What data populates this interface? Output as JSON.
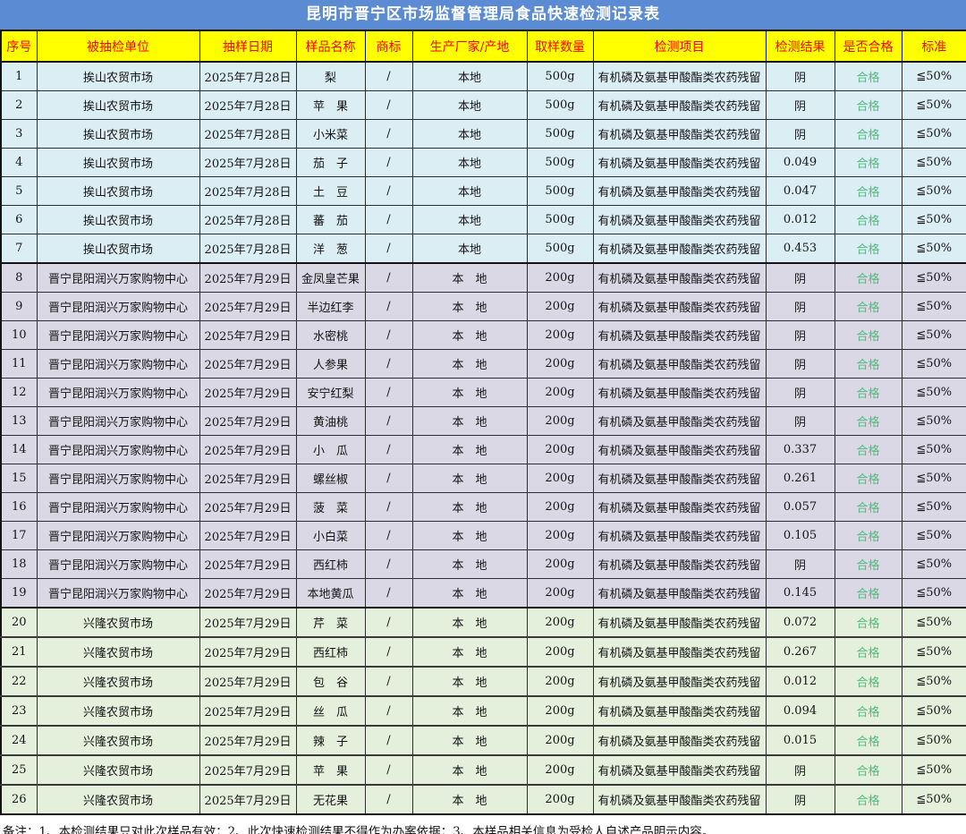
{
  "title": "昆明市晋宁区市场监督管理局食品快速检测记录表",
  "columns": [
    {
      "key": "seq",
      "label": "序号"
    },
    {
      "key": "unit",
      "label": "被抽检单位"
    },
    {
      "key": "date",
      "label": "抽样日期"
    },
    {
      "key": "sample",
      "label": "样品名称"
    },
    {
      "key": "brand",
      "label": "商标"
    },
    {
      "key": "producer",
      "label": "生产厂家/产地"
    },
    {
      "key": "qty",
      "label": "取样数量"
    },
    {
      "key": "item",
      "label": "检测项目"
    },
    {
      "key": "result",
      "label": "检测结果"
    },
    {
      "key": "qualified",
      "label": "是否合格"
    },
    {
      "key": "standard",
      "label": "标准"
    }
  ],
  "rows": [
    {
      "seq": "1",
      "unit": "挨山农贸市场",
      "date": "2025年7月28日",
      "sample": "梨",
      "brand": "/",
      "producer": "本地",
      "qty": "500g",
      "item": "有机磷及氨基甲酸酯类农药残留",
      "result": "阴",
      "qualified": "合格",
      "standard": "≦50%",
      "group": "blue"
    },
    {
      "seq": "2",
      "unit": "挨山农贸市场",
      "date": "2025年7月28日",
      "sample": "苹　果",
      "brand": "/",
      "producer": "本地",
      "qty": "500g",
      "item": "有机磷及氨基甲酸酯类农药残留",
      "result": "阴",
      "qualified": "合格",
      "standard": "≦50%",
      "group": "blue"
    },
    {
      "seq": "3",
      "unit": "挨山农贸市场",
      "date": "2025年7月28日",
      "sample": "小米菜",
      "brand": "/",
      "producer": "本地",
      "qty": "500g",
      "item": "有机磷及氨基甲酸酯类农药残留",
      "result": "阴",
      "qualified": "合格",
      "standard": "≦50%",
      "group": "blue"
    },
    {
      "seq": "4",
      "unit": "挨山农贸市场",
      "date": "2025年7月28日",
      "sample": "茄　子",
      "brand": "/",
      "producer": "本地",
      "qty": "500g",
      "item": "有机磷及氨基甲酸酯类农药残留",
      "result": "0.049",
      "qualified": "合格",
      "standard": "≦50%",
      "group": "blue"
    },
    {
      "seq": "5",
      "unit": "挨山农贸市场",
      "date": "2025年7月28日",
      "sample": "土　豆",
      "brand": "/",
      "producer": "本地",
      "qty": "500g",
      "item": "有机磷及氨基甲酸酯类农药残留",
      "result": "0.047",
      "qualified": "合格",
      "standard": "≦50%",
      "group": "blue"
    },
    {
      "seq": "6",
      "unit": "挨山农贸市场",
      "date": "2025年7月28日",
      "sample": "蕃　茄",
      "brand": "/",
      "producer": "本地",
      "qty": "500g",
      "item": "有机磷及氨基甲酸酯类农药残留",
      "result": "0.012",
      "qualified": "合格",
      "standard": "≦50%",
      "group": "blue"
    },
    {
      "seq": "7",
      "unit": "挨山农贸市场",
      "date": "2025年7月28日",
      "sample": "洋　葱",
      "brand": "/",
      "producer": "本地",
      "qty": "500g",
      "item": "有机磷及氨基甲酸酯类农药残留",
      "result": "0.453",
      "qualified": "合格",
      "standard": "≦50%",
      "group": "blue"
    },
    {
      "seq": "8",
      "unit": "晋宁昆阳润兴万家购物中心",
      "date": "2025年7月29日",
      "sample": "金凤皇芒果",
      "brand": "/",
      "producer": "本　地",
      "qty": "200g",
      "item": "有机磷及氨基甲酸酯类农药残留",
      "result": "阴",
      "qualified": "合格",
      "standard": "≦50%",
      "group": "purple"
    },
    {
      "seq": "9",
      "unit": "晋宁昆阳润兴万家购物中心",
      "date": "2025年7月29日",
      "sample": "半边红李",
      "brand": "/",
      "producer": "本　地",
      "qty": "200g",
      "item": "有机磷及氨基甲酸酯类农药残留",
      "result": "阴",
      "qualified": "合格",
      "standard": "≦50%",
      "group": "purple"
    },
    {
      "seq": "10",
      "unit": "晋宁昆阳润兴万家购物中心",
      "date": "2025年7月29日",
      "sample": "水密桃",
      "brand": "/",
      "producer": "本　地",
      "qty": "200g",
      "item": "有机磷及氨基甲酸酯类农药残留",
      "result": "阴",
      "qualified": "合格",
      "standard": "≦50%",
      "group": "purple"
    },
    {
      "seq": "11",
      "unit": "晋宁昆阳润兴万家购物中心",
      "date": "2025年7月29日",
      "sample": "人参果",
      "brand": "/",
      "producer": "本　地",
      "qty": "200g",
      "item": "有机磷及氨基甲酸酯类农药残留",
      "result": "阴",
      "qualified": "合格",
      "standard": "≦50%",
      "group": "purple"
    },
    {
      "seq": "12",
      "unit": "晋宁昆阳润兴万家购物中心",
      "date": "2025年7月29日",
      "sample": "安宁红梨",
      "brand": "/",
      "producer": "本　地",
      "qty": "200g",
      "item": "有机磷及氨基甲酸酯类农药残留",
      "result": "阴",
      "qualified": "合格",
      "standard": "≦50%",
      "group": "purple"
    },
    {
      "seq": "13",
      "unit": "晋宁昆阳润兴万家购物中心",
      "date": "2025年7月29日",
      "sample": "黄油桃",
      "brand": "/",
      "producer": "本　地",
      "qty": "200g",
      "item": "有机磷及氨基甲酸酯类农药残留",
      "result": "阴",
      "qualified": "合格",
      "standard": "≦50%",
      "group": "purple"
    },
    {
      "seq": "14",
      "unit": "晋宁昆阳润兴万家购物中心",
      "date": "2025年7月29日",
      "sample": "小　瓜",
      "brand": "/",
      "producer": "本　地",
      "qty": "200g",
      "item": "有机磷及氨基甲酸酯类农药残留",
      "result": "0.337",
      "qualified": "合格",
      "standard": "≦50%",
      "group": "purple"
    },
    {
      "seq": "15",
      "unit": "晋宁昆阳润兴万家购物中心",
      "date": "2025年7月29日",
      "sample": "螺丝椒",
      "brand": "/",
      "producer": "本　地",
      "qty": "200g",
      "item": "有机磷及氨基甲酸酯类农药残留",
      "result": "0.261",
      "qualified": "合格",
      "standard": "≦50%",
      "group": "purple"
    },
    {
      "seq": "16",
      "unit": "晋宁昆阳润兴万家购物中心",
      "date": "2025年7月29日",
      "sample": "菠　菜",
      "brand": "/",
      "producer": "本　地",
      "qty": "200g",
      "item": "有机磷及氨基甲酸酯类农药残留",
      "result": "0.057",
      "qualified": "合格",
      "standard": "≦50%",
      "group": "purple"
    },
    {
      "seq": "17",
      "unit": "晋宁昆阳润兴万家购物中心",
      "date": "2025年7月29日",
      "sample": "小白菜",
      "brand": "/",
      "producer": "本　地",
      "qty": "200g",
      "item": "有机磷及氨基甲酸酯类农药残留",
      "result": "0.105",
      "qualified": "合格",
      "standard": "≦50%",
      "group": "purple"
    },
    {
      "seq": "18",
      "unit": "晋宁昆阳润兴万家购物中心",
      "date": "2025年7月29日",
      "sample": "西红柿",
      "brand": "/",
      "producer": "本　地",
      "qty": "200g",
      "item": "有机磷及氨基甲酸酯类农药残留",
      "result": "阴",
      "qualified": "合格",
      "standard": "≦50%",
      "group": "purple"
    },
    {
      "seq": "19",
      "unit": "晋宁昆阳润兴万家购物中心",
      "date": "2025年7月29日",
      "sample": "本地黄瓜",
      "brand": "/",
      "producer": "本　地",
      "qty": "200g",
      "item": "有机磷及氨基甲酸酯类农药残留",
      "result": "0.145",
      "qualified": "合格",
      "standard": "≦50%",
      "group": "purple"
    },
    {
      "seq": "20",
      "unit": "兴隆农贸市场",
      "date": "2025年7月29日",
      "sample": "芹　菜",
      "brand": "/",
      "producer": "本　地",
      "qty": "200g",
      "item": "有机磷及氨基甲酸酯类农药残留",
      "result": "0.072",
      "qualified": "合格",
      "standard": "≦50%",
      "group": "green"
    },
    {
      "seq": "21",
      "unit": "兴隆农贸市场",
      "date": "2025年7月29日",
      "sample": "西红柿",
      "brand": "/",
      "producer": "本　地",
      "qty": "200g",
      "item": "有机磷及氨基甲酸酯类农药残留",
      "result": "0.267",
      "qualified": "合格",
      "standard": "≦50%",
      "group": "green"
    },
    {
      "seq": "22",
      "unit": "兴隆农贸市场",
      "date": "2025年7月29日",
      "sample": "包　谷",
      "brand": "/",
      "producer": "本　地",
      "qty": "200g",
      "item": "有机磷及氨基甲酸酯类农药残留",
      "result": "0.012",
      "qualified": "合格",
      "standard": "≦50%",
      "group": "green"
    },
    {
      "seq": "23",
      "unit": "兴隆农贸市场",
      "date": "2025年7月29日",
      "sample": "丝　瓜",
      "brand": "/",
      "producer": "本　地",
      "qty": "200g",
      "item": "有机磷及氨基甲酸酯类农药残留",
      "result": "0.094",
      "qualified": "合格",
      "standard": "≦50%",
      "group": "green"
    },
    {
      "seq": "24",
      "unit": "兴隆农贸市场",
      "date": "2025年7月29日",
      "sample": "辣　子",
      "brand": "/",
      "producer": "本　地",
      "qty": "200g",
      "item": "有机磷及氨基甲酸酯类农药残留",
      "result": "0.015",
      "qualified": "合格",
      "standard": "≦50%",
      "group": "green"
    },
    {
      "seq": "25",
      "unit": "兴隆农贸市场",
      "date": "2025年7月29日",
      "sample": "苹　果",
      "brand": "/",
      "producer": "本　地",
      "qty": "200g",
      "item": "有机磷及氨基甲酸酯类农药残留",
      "result": "阴",
      "qualified": "合格",
      "standard": "≦50%",
      "group": "green"
    },
    {
      "seq": "26",
      "unit": "兴隆农贸市场",
      "date": "2025年7月29日",
      "sample": "无花果",
      "brand": "/",
      "producer": "本　地",
      "qty": "200g",
      "item": "有机磷及氨基甲酸酯类农药残留",
      "result": "阴",
      "qualified": "合格",
      "standard": "≦50%",
      "group": "green"
    }
  ],
  "footer": {
    "note": "备注：1、本检测结果只对此次样品有效；2、此次快速检测结果不得作为办案依据；3、本样品相关信息为受检人自述产品明示内容。"
  },
  "colors": {
    "title_bg": "#5b8bd2",
    "title_text": "#ffffff",
    "header_bg": "#ffff00",
    "header_text": "#ff0000",
    "group_blue": "#dbeef4",
    "group_purple": "#dbd8e6",
    "group_green": "#e4efdc",
    "qualified_text": "#4fba7c"
  }
}
